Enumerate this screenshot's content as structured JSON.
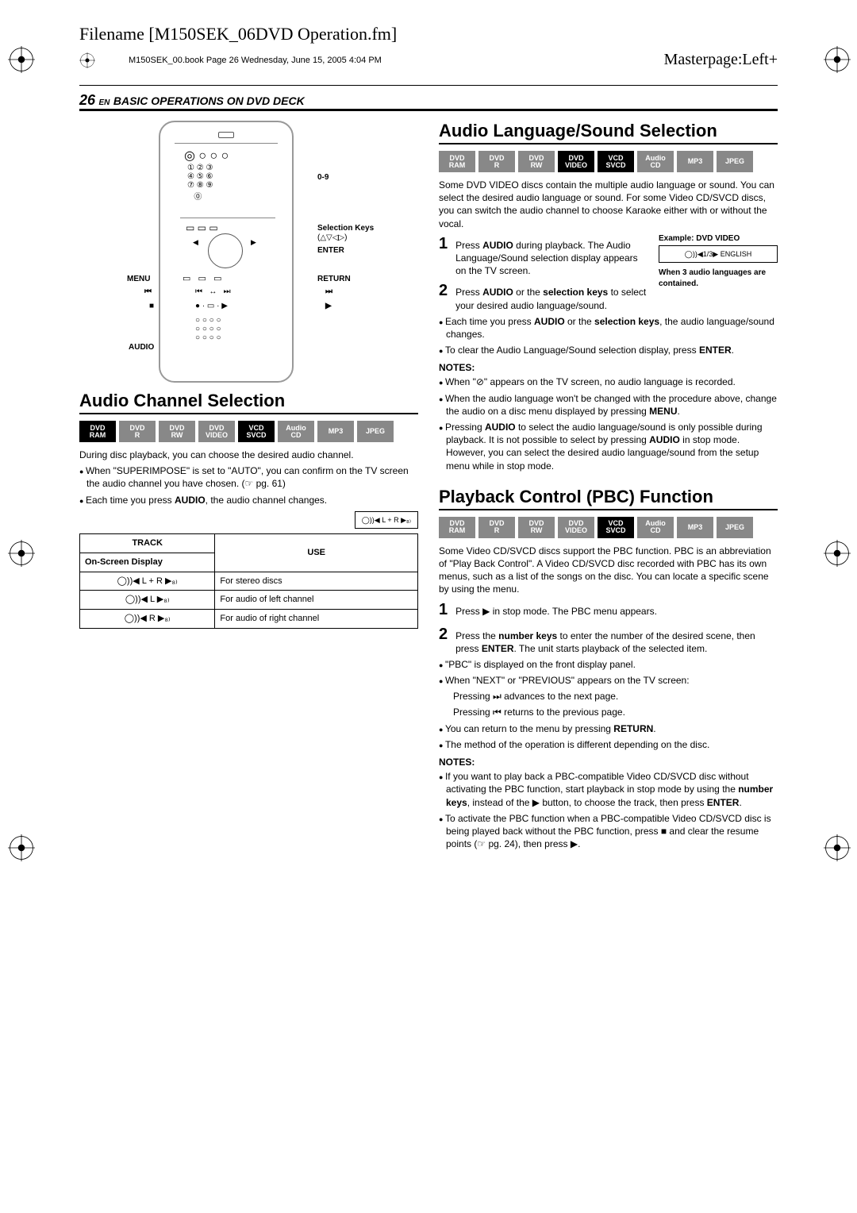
{
  "header": {
    "filename": "Filename [M150SEK_06DVD Operation.fm]",
    "bookinfo": "M150SEK_00.book  Page 26  Wednesday, June 15, 2005  4:04 PM",
    "masterpage": "Masterpage:Left+"
  },
  "pagenum": "26",
  "en": "EN",
  "section_hdr": "BASIC OPERATIONS ON DVD DECK",
  "remote_labels": {
    "num": "0-9",
    "sel": "Selection Keys",
    "dirs": "(△▽◁▷)",
    "enter": "ENTER",
    "menu": "MENU",
    "return": "RETURN",
    "prev": "⏮",
    "next": "⏭",
    "play": "▶",
    "stop": "■",
    "audio": "AUDIO"
  },
  "sections": {
    "audio_channel": {
      "title": "Audio Channel Selection",
      "formats": [
        {
          "t1": "DVD",
          "t2": "RAM",
          "on": true
        },
        {
          "t1": "DVD",
          "t2": "R",
          "on": false
        },
        {
          "t1": "DVD",
          "t2": "RW",
          "on": false
        },
        {
          "t1": "DVD",
          "t2": "VIDEO",
          "on": false
        },
        {
          "t1": "VCD",
          "t2": "SVCD",
          "on": true
        },
        {
          "t1": "Audio",
          "t2": "CD",
          "on": false
        },
        {
          "t1": "MP3",
          "t2": "",
          "on": false
        },
        {
          "t1": "JPEG",
          "t2": "",
          "on": false
        }
      ],
      "intro": "During disc playback, you can choose the desired audio channel.",
      "b1_pre": "When \"SUPERIMPOSE\" is set to \"AUTO\", you can confirm on the TV screen the audio channel you have chosen. (☞ pg. 61)",
      "b2_pre": "Each time you press ",
      "b2_bold": "AUDIO",
      "b2_post": ", the audio channel changes.",
      "osd_sample": "◯))◀ L + R ▶₈₎",
      "table": {
        "h1": "TRACK",
        "h1b": "On-Screen Display",
        "h2": "USE",
        "rows": [
          {
            "osd": "◯))◀ L + R ▶₈₎",
            "use": "For stereo discs"
          },
          {
            "osd": "◯))◀ L ▶₈₎",
            "use": "For audio of left channel"
          },
          {
            "osd": "◯))◀ R ▶₈₎",
            "use": "For audio of right channel"
          }
        ]
      }
    },
    "audio_lang": {
      "title": "Audio Language/Sound Selection",
      "formats": [
        {
          "t1": "DVD",
          "t2": "RAM",
          "on": false
        },
        {
          "t1": "DVD",
          "t2": "R",
          "on": false
        },
        {
          "t1": "DVD",
          "t2": "RW",
          "on": false
        },
        {
          "t1": "DVD",
          "t2": "VIDEO",
          "on": true
        },
        {
          "t1": "VCD",
          "t2": "SVCD",
          "on": true
        },
        {
          "t1": "Audio",
          "t2": "CD",
          "on": false
        },
        {
          "t1": "MP3",
          "t2": "",
          "on": false
        },
        {
          "t1": "JPEG",
          "t2": "",
          "on": false
        }
      ],
      "intro": "Some DVD VIDEO discs contain the multiple audio language or sound. You can select the desired audio language or sound. For some Video CD/SVCD discs, you can switch the audio channel to choose Karaoke either with or without the vocal.",
      "step1_a": "Press ",
      "step1_bold": "AUDIO",
      "step1_b": " during playback. The Audio Language/Sound selection display appears on the TV screen.",
      "ex_label": "Example: DVD VIDEO",
      "ex_box": "◯))◀1/3▶ ENGLISH",
      "ex_note": "When 3 audio languages are contained.",
      "step2_a": "Press ",
      "step2_b1": "AUDIO",
      "step2_c": " or the ",
      "step2_b2": "selection keys",
      "step2_d": " to select your desired audio language/sound.",
      "b1_a": "Each time you press ",
      "b1_b": "AUDIO",
      "b1_c": " or the ",
      "b1_d": "selection keys",
      "b1_e": ", the audio language/sound changes.",
      "b2_a": "To clear the Audio Language/Sound selection display, press ",
      "b2_b": "ENTER",
      "b2_c": ".",
      "notes": "NOTES:",
      "n1": "When \"⊘\" appears on the TV screen, no audio language is recorded.",
      "n2_a": "When the audio language won't be changed with the procedure above, change the audio on a disc menu displayed by pressing ",
      "n2_b": "MENU",
      "n2_c": ".",
      "n3_a": "Pressing ",
      "n3_b": "AUDIO",
      "n3_c": " to select the audio language/sound is only possible during playback. It is not possible to select by pressing ",
      "n3_d": "AUDIO",
      "n3_e": " in stop mode. However, you can select the desired audio language/sound from the setup menu while in stop mode."
    },
    "pbc": {
      "title": "Playback Control (PBC) Function",
      "formats": [
        {
          "t1": "DVD",
          "t2": "RAM",
          "on": false
        },
        {
          "t1": "DVD",
          "t2": "R",
          "on": false
        },
        {
          "t1": "DVD",
          "t2": "RW",
          "on": false
        },
        {
          "t1": "DVD",
          "t2": "VIDEO",
          "on": false
        },
        {
          "t1": "VCD",
          "t2": "SVCD",
          "on": true
        },
        {
          "t1": "Audio",
          "t2": "CD",
          "on": false
        },
        {
          "t1": "MP3",
          "t2": "",
          "on": false
        },
        {
          "t1": "JPEG",
          "t2": "",
          "on": false
        }
      ],
      "intro": "Some Video CD/SVCD discs support the PBC function. PBC is an abbreviation of \"Play Back Control\". A Video CD/SVCD disc recorded with PBC has its own menus, such as a list of the songs on the disc. You can locate a specific scene by using the menu.",
      "step1": "Press ▶ in stop mode. The PBC menu appears.",
      "step2_a": "Press the ",
      "step2_b": "number keys",
      "step2_c": " to enter the number of the desired scene, then press ",
      "step2_d": "ENTER",
      "step2_e": ". The unit starts playback of the selected item.",
      "b1": "\"PBC\" is displayed on the front display panel.",
      "b2": "When \"NEXT\" or \"PREVIOUS\" appears on the TV screen:",
      "b2a": "Pressing ⏭ advances to the next page.",
      "b2b": "Pressing ⏮ returns to the previous page.",
      "b3_a": "You can return to the menu by pressing ",
      "b3_b": "RETURN",
      "b3_c": ".",
      "b4": "The method of the operation is different depending on the disc.",
      "notes": "NOTES:",
      "n1_a": "If you want to play back a PBC-compatible Video CD/SVCD disc without activating the PBC function, start playback in stop mode by using the ",
      "n1_b": "number keys",
      "n1_c": ", instead of the ▶ button, to choose the track, then press ",
      "n1_d": "ENTER",
      "n1_e": ".",
      "n2": "To activate the PBC function when a PBC-compatible Video CD/SVCD disc is being played back without the PBC function, press ■ and clear the resume points (☞ pg. 24), then press ▶."
    }
  }
}
